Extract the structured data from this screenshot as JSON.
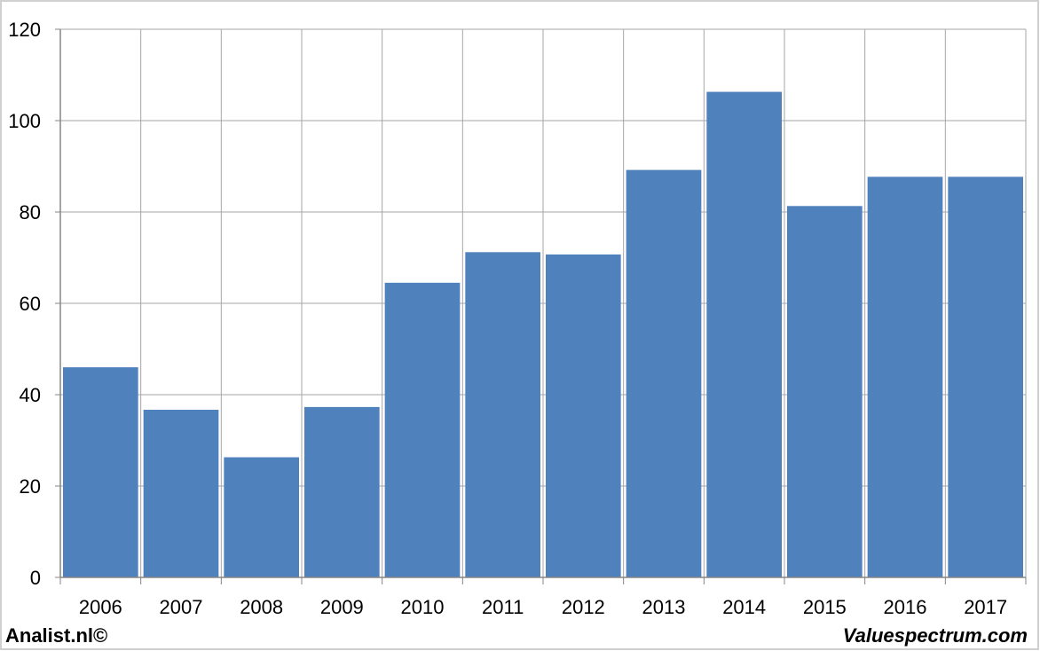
{
  "chart_data": {
    "type": "bar",
    "categories": [
      "2006",
      "2007",
      "2008",
      "2009",
      "2010",
      "2011",
      "2012",
      "2013",
      "2014",
      "2015",
      "2016",
      "2017"
    ],
    "values": [
      46,
      36.7,
      26.3,
      37.3,
      64.5,
      71.2,
      70.7,
      89.2,
      106.3,
      81.3,
      87.7,
      87.7
    ],
    "title": "",
    "xlabel": "",
    "ylabel": "",
    "ylim": [
      0,
      120
    ],
    "yticks": [
      "0",
      "20",
      "40",
      "60",
      "80",
      "100",
      "120"
    ],
    "grid": true,
    "legend": "none",
    "colors": {
      "bar": "#4f81bd",
      "grid": "#a6a6a6",
      "axis": "#868686",
      "background": "#ffffff"
    }
  },
  "footer": {
    "left_text": "Analist.nl©",
    "right_text": "Valuespectrum.com"
  }
}
